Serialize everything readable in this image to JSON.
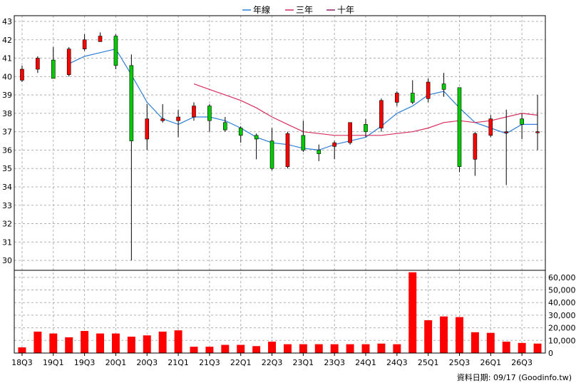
{
  "chart_data": {
    "type": "candlestick+line+bar",
    "legend": {
      "position": "top-center",
      "items": [
        {
          "label": "年線",
          "color": "#2f7fd6"
        },
        {
          "label": "三年",
          "color": "#d62f5f"
        },
        {
          "label": "十年",
          "color": "#8e1f6e"
        }
      ]
    },
    "grid": true,
    "price_axis": {
      "side": "left",
      "ylim": [
        29.5,
        43
      ],
      "ticks": [
        30,
        31,
        32,
        33,
        34,
        35,
        36,
        37,
        38,
        39,
        40,
        41,
        42,
        43
      ]
    },
    "volume_axis": {
      "side": "right",
      "ylim": [
        0,
        65000
      ],
      "ticks": [
        0,
        10000,
        20000,
        30000,
        40000,
        50000,
        60000
      ],
      "tick_labels": [
        "0",
        "10,000",
        "20,000",
        "30,000",
        "40,000",
        "50,000",
        "60,000"
      ]
    },
    "x_tick_labels": [
      "18Q3",
      "19Q1",
      "19Q3",
      "20Q1",
      "20Q3",
      "21Q1",
      "21Q3",
      "22Q1",
      "22Q3",
      "23Q1",
      "23Q3",
      "24Q1",
      "24Q3",
      "25Q1",
      "25Q3",
      "26Q1",
      "26Q3"
    ],
    "candles": [
      {
        "open": 39.8,
        "high": 40.6,
        "low": 39.7,
        "close": 40.4
      },
      {
        "open": 40.4,
        "high": 41.1,
        "low": 40.2,
        "close": 41.0
      },
      {
        "open": 40.9,
        "high": 41.6,
        "low": 39.9,
        "close": 39.9
      },
      {
        "open": 40.1,
        "high": 41.6,
        "low": 40.0,
        "close": 41.5
      },
      {
        "open": 41.5,
        "high": 42.3,
        "low": 41.4,
        "close": 42.0
      },
      {
        "open": 41.9,
        "high": 42.4,
        "low": 41.9,
        "close": 42.2
      },
      {
        "open": 42.2,
        "high": 42.3,
        "low": 40.4,
        "close": 40.6
      },
      {
        "open": 40.6,
        "high": 41.2,
        "low": 30.0,
        "close": 36.5
      },
      {
        "open": 36.6,
        "high": 38.5,
        "low": 36.0,
        "close": 37.7
      },
      {
        "open": 37.6,
        "high": 38.5,
        "low": 37.5,
        "close": 37.7
      },
      {
        "open": 37.6,
        "high": 38.2,
        "low": 36.7,
        "close": 37.8
      },
      {
        "open": 37.8,
        "high": 38.6,
        "low": 37.6,
        "close": 38.4
      },
      {
        "open": 38.4,
        "high": 38.5,
        "low": 37.0,
        "close": 37.6
      },
      {
        "open": 37.5,
        "high": 37.8,
        "low": 37.0,
        "close": 37.1
      },
      {
        "open": 37.2,
        "high": 37.3,
        "low": 36.4,
        "close": 36.8
      },
      {
        "open": 36.8,
        "high": 36.9,
        "low": 35.5,
        "close": 36.6
      },
      {
        "open": 36.5,
        "high": 37.2,
        "low": 34.9,
        "close": 35.0
      },
      {
        "open": 35.1,
        "high": 37.0,
        "low": 35.0,
        "close": 36.9
      },
      {
        "open": 36.8,
        "high": 37.6,
        "low": 35.9,
        "close": 36.0
      },
      {
        "open": 36.0,
        "high": 36.3,
        "low": 35.4,
        "close": 35.8
      },
      {
        "open": 36.2,
        "high": 36.5,
        "low": 35.5,
        "close": 36.4
      },
      {
        "open": 36.4,
        "high": 37.5,
        "low": 36.3,
        "close": 37.5
      },
      {
        "open": 37.4,
        "high": 37.7,
        "low": 36.7,
        "close": 37.0
      },
      {
        "open": 37.2,
        "high": 38.8,
        "low": 37.0,
        "close": 38.7
      },
      {
        "open": 38.6,
        "high": 39.2,
        "low": 38.4,
        "close": 39.1
      },
      {
        "open": 39.1,
        "high": 39.8,
        "low": 38.5,
        "close": 38.6
      },
      {
        "open": 38.8,
        "high": 39.9,
        "low": 38.6,
        "close": 39.7
      },
      {
        "open": 39.6,
        "high": 40.2,
        "low": 38.9,
        "close": 39.3
      },
      {
        "open": 39.4,
        "high": 39.4,
        "low": 34.8,
        "close": 35.1
      },
      {
        "open": 35.5,
        "high": 37.0,
        "low": 34.6,
        "close": 36.9
      },
      {
        "open": 36.8,
        "high": 37.9,
        "low": 36.7,
        "close": 37.7
      },
      {
        "open": 37.0,
        "high": 38.2,
        "low": 34.1,
        "close": 37.0
      },
      {
        "open": 37.7,
        "high": 38.0,
        "low": 36.6,
        "close": 37.4
      },
      {
        "open": 37.0,
        "high": 39.0,
        "low": 36.0,
        "close": 37.0
      }
    ],
    "series": [
      {
        "values": [
          null,
          null,
          null,
          40.7,
          41.1,
          41.3,
          41.5,
          40.1,
          38.6,
          37.7,
          37.4,
          37.8,
          37.8,
          37.6,
          37.2,
          36.7,
          36.4,
          36.3,
          36.1,
          36.0,
          36.3,
          36.5,
          36.7,
          37.3,
          38.0,
          38.4,
          39.0,
          39.2,
          38.3,
          37.5,
          37.2,
          36.9,
          37.4,
          37.4
        ]
      },
      {
        "values": [
          null,
          null,
          null,
          null,
          null,
          null,
          null,
          null,
          null,
          null,
          null,
          39.6,
          39.3,
          39.0,
          38.7,
          38.3,
          37.8,
          37.4,
          37.0,
          36.9,
          36.8,
          36.8,
          36.8,
          36.8,
          36.9,
          37.0,
          37.2,
          37.5,
          37.6,
          37.5,
          37.6,
          37.8,
          38.0,
          37.9
        ]
      }
    ],
    "volumes": [
      4500,
      17000,
      15500,
      12500,
      17500,
      15500,
      15500,
      13000,
      14000,
      17000,
      18000,
      5000,
      5000,
      6500,
      6500,
      5500,
      9000,
      7000,
      7000,
      7000,
      7000,
      7000,
      7000,
      7500,
      7000,
      64000,
      26000,
      29000,
      28500,
      16500,
      16000,
      9000,
      8000,
      7500
    ]
  },
  "footer": {
    "credit": "資料日期: 09/17  (Goodinfo.tw)"
  }
}
